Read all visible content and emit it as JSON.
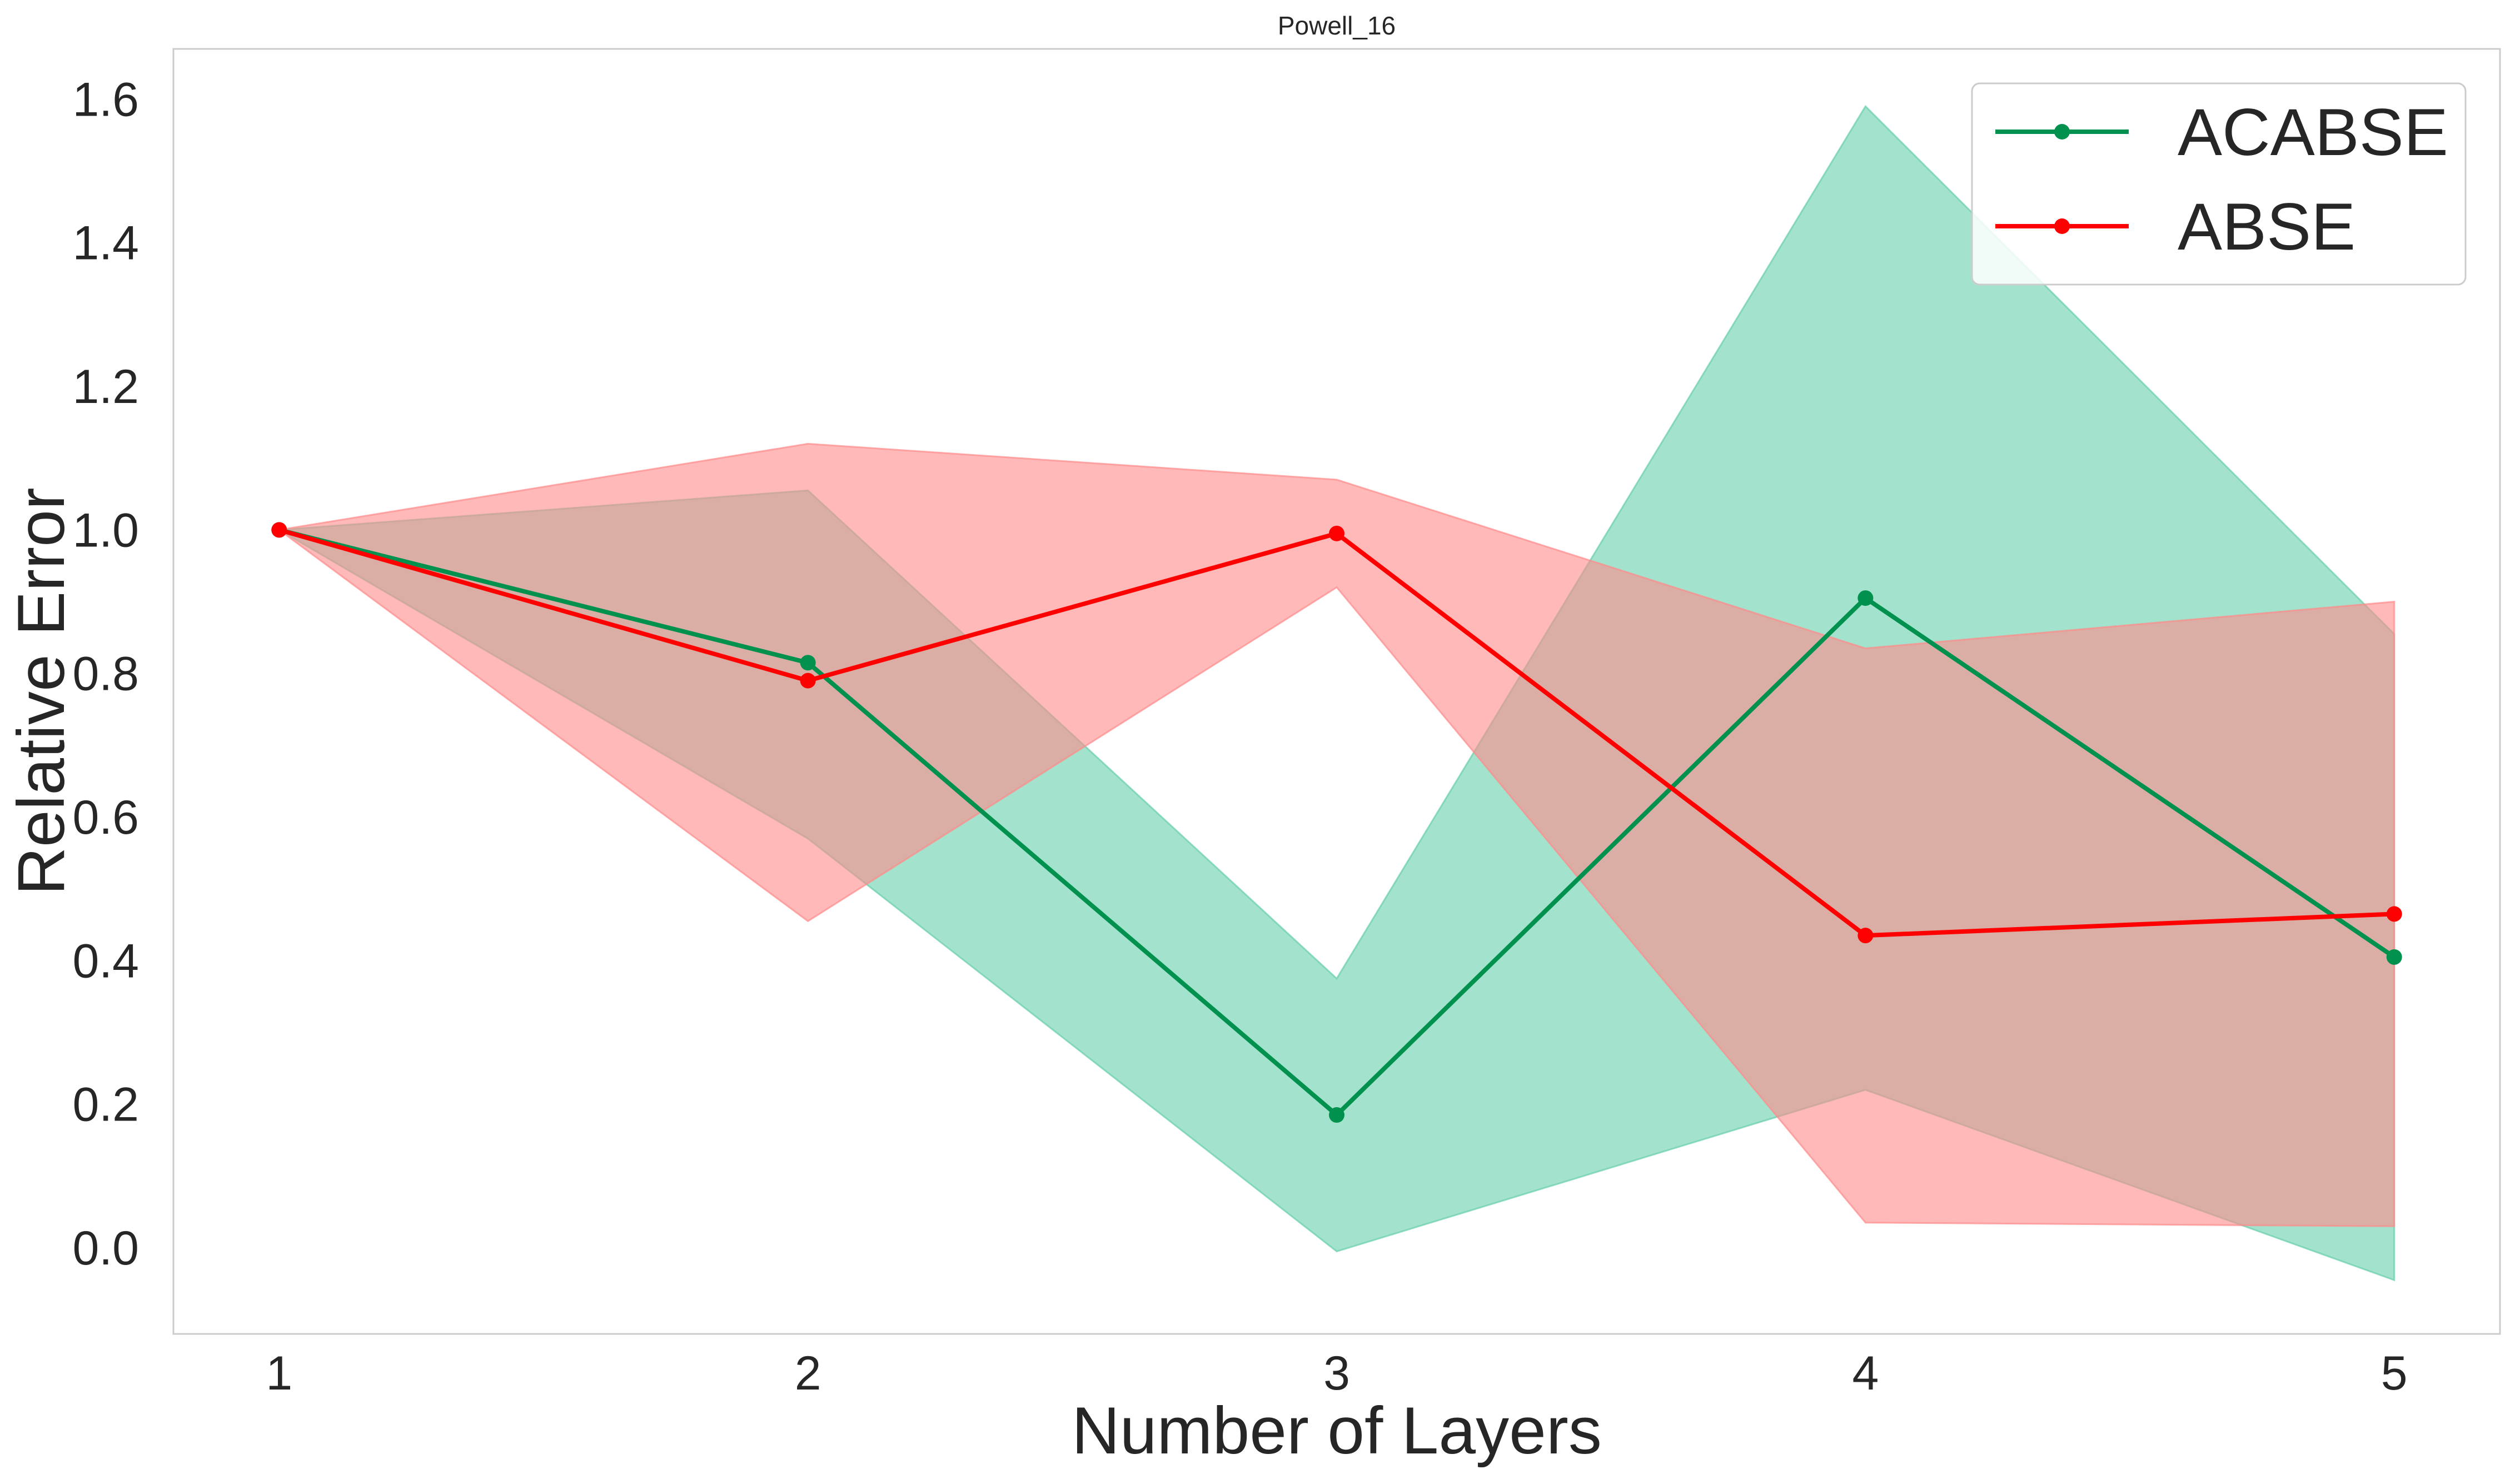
{
  "chart_data": {
    "type": "line",
    "title": "Powell_16",
    "xlabel": "Number of Layers",
    "ylabel": "Relative Error",
    "x": [
      1,
      2,
      3,
      4,
      5
    ],
    "xlim": [
      0.8,
      5.2
    ],
    "ylim": [
      -0.12,
      1.67
    ],
    "xticks": [
      "1",
      "2",
      "3",
      "4",
      "5"
    ],
    "yticks": [
      "0.0",
      "0.2",
      "0.4",
      "0.6",
      "0.8",
      "1.0",
      "1.2",
      "1.4",
      "1.6"
    ],
    "grid": false,
    "legend_position": "top-right",
    "series": [
      {
        "name": "ACABSE",
        "color": "#00914f",
        "band_color": "#66cfaa",
        "values": [
          1.0,
          0.815,
          0.185,
          0.905,
          0.405
        ],
        "lower": [
          1.0,
          0.57,
          -0.005,
          0.22,
          -0.045
        ],
        "upper": [
          1.0,
          1.055,
          0.375,
          1.59,
          0.855
        ]
      },
      {
        "name": "ABSE",
        "color": "#ff0000",
        "band_color": "#ff8a8a",
        "values": [
          1.0,
          0.79,
          0.995,
          0.435,
          0.465
        ],
        "lower": [
          1.0,
          0.455,
          0.92,
          0.035,
          0.03
        ],
        "upper": [
          1.0,
          1.12,
          1.07,
          0.835,
          0.9
        ]
      }
    ]
  }
}
